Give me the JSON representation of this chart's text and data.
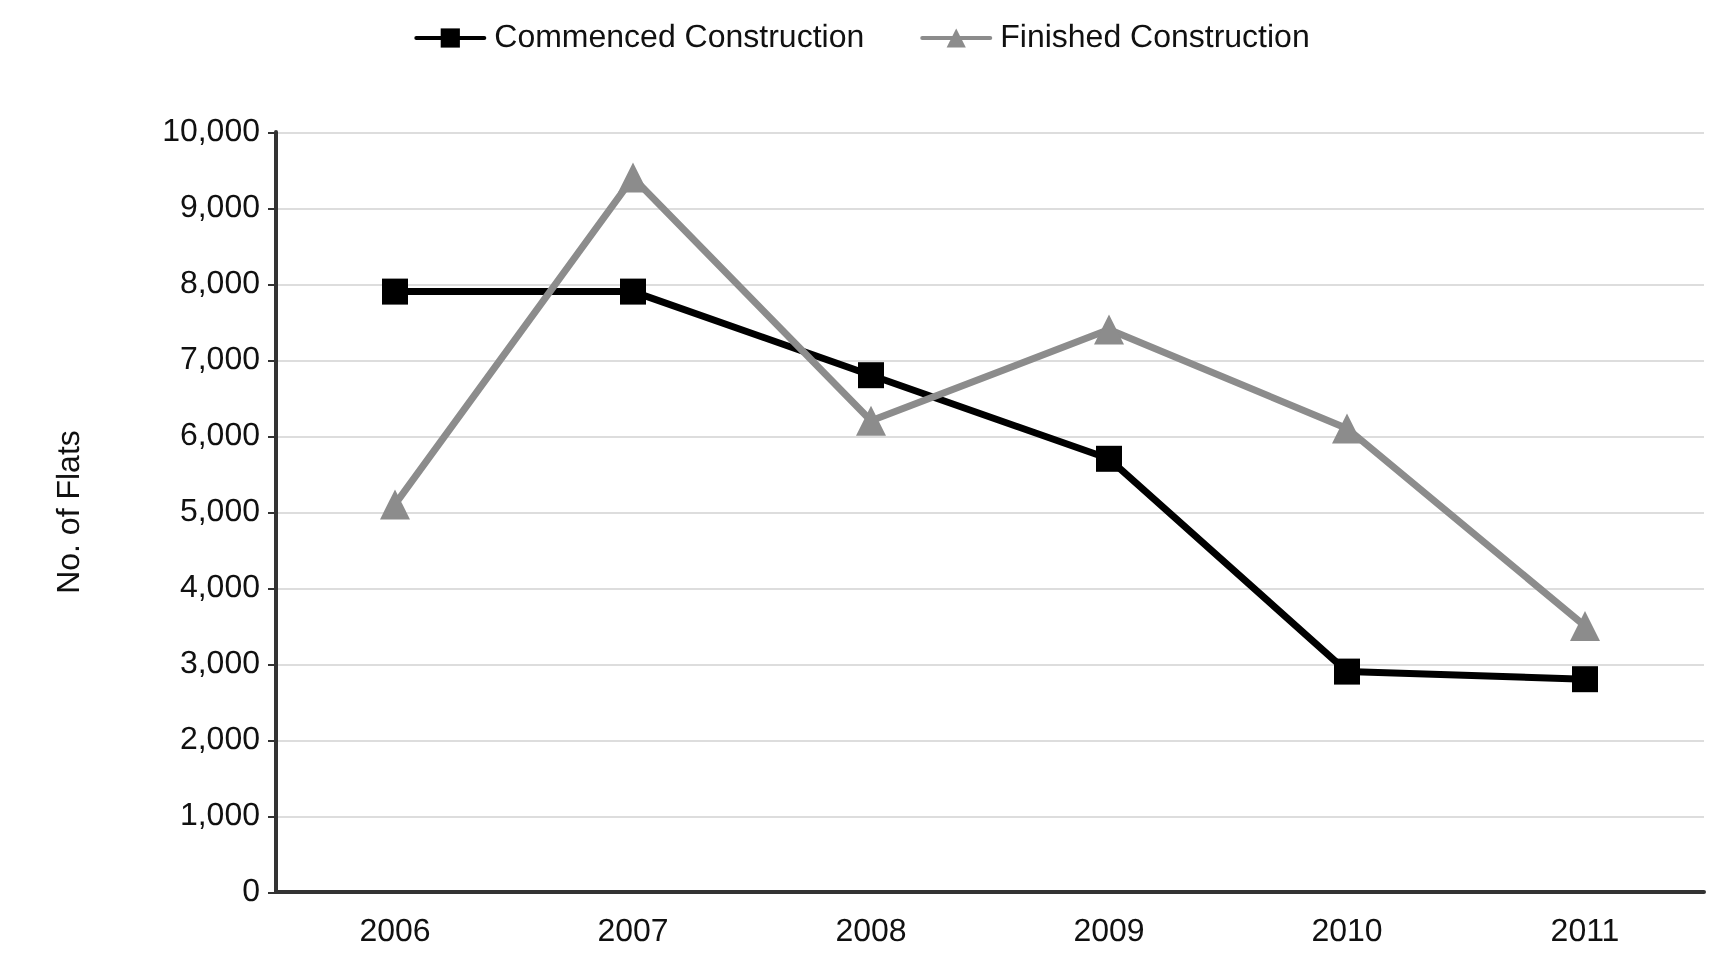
{
  "chart_data": {
    "type": "line",
    "ylabel": "No. of Flats",
    "categories": [
      "2006",
      "2007",
      "2008",
      "2009",
      "2010",
      "2011"
    ],
    "series": [
      {
        "name": "Commenced Construction",
        "color": "#000000",
        "marker": "square",
        "values": [
          7900,
          7900,
          6800,
          5700,
          2900,
          2800
        ]
      },
      {
        "name": "Finished Construction",
        "color": "#8c8c8c",
        "marker": "triangle",
        "values": [
          5100,
          9400,
          6200,
          7400,
          6100,
          3500
        ]
      }
    ],
    "ylim": [
      0,
      10000
    ],
    "yticks": [
      0,
      {
        "value": 1000,
        "label": "1,000"
      },
      {
        "value": 2000,
        "label": "2,000"
      },
      {
        "value": 3000,
        "label": "3,000"
      },
      {
        "value": 4000,
        "label": "4,000"
      },
      {
        "value": 5000,
        "label": "5,000"
      },
      {
        "value": 6000,
        "label": "6,000"
      },
      {
        "value": 7000,
        "label": "7,000"
      },
      {
        "value": 8000,
        "label": "8,000"
      },
      {
        "value": 9000,
        "label": "9,000"
      },
      {
        "value": 10000,
        "label": "10,000"
      }
    ],
    "grid": "y",
    "legend": "top",
    "line_style": "solid"
  }
}
